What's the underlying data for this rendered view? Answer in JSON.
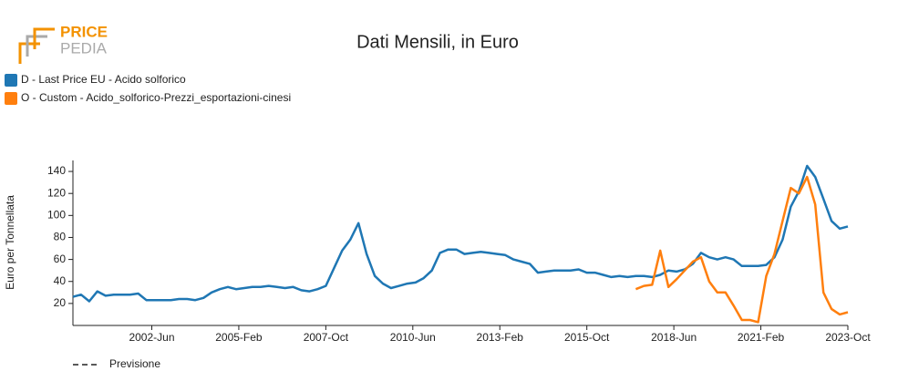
{
  "logo": [
    "PRICE",
    "PEDIA"
  ],
  "chart_data": {
    "type": "line",
    "title": "Dati Mensili, in Euro",
    "y_label": "Euro per Tonnellata",
    "forecast_label": "Previsione",
    "x": [
      "2000-01",
      "2000-04",
      "2000-07",
      "2000-10",
      "2001-01",
      "2001-04",
      "2001-07",
      "2001-10",
      "2002-01",
      "2002-04",
      "2002-07",
      "2002-10",
      "2003-01",
      "2003-04",
      "2003-07",
      "2003-10",
      "2004-01",
      "2004-04",
      "2004-07",
      "2004-10",
      "2005-01",
      "2005-04",
      "2005-07",
      "2005-10",
      "2006-01",
      "2006-04",
      "2006-07",
      "2006-10",
      "2007-01",
      "2007-04",
      "2007-07",
      "2007-10",
      "2008-01",
      "2008-04",
      "2008-07",
      "2008-10",
      "2009-01",
      "2009-04",
      "2009-07",
      "2009-10",
      "2010-01",
      "2010-04",
      "2010-07",
      "2010-10",
      "2011-01",
      "2011-04",
      "2011-07",
      "2011-10",
      "2012-01",
      "2012-04",
      "2012-07",
      "2012-10",
      "2013-01",
      "2013-04",
      "2013-07",
      "2013-10",
      "2014-01",
      "2014-04",
      "2014-07",
      "2014-10",
      "2015-01",
      "2015-04",
      "2015-07",
      "2015-10",
      "2016-01",
      "2016-04",
      "2016-07",
      "2016-10",
      "2017-01",
      "2017-04",
      "2017-07",
      "2017-10",
      "2018-01",
      "2018-04",
      "2018-07",
      "2018-10",
      "2019-01",
      "2019-04",
      "2019-07",
      "2019-10",
      "2020-01",
      "2020-04",
      "2020-07",
      "2020-10",
      "2021-01",
      "2021-04",
      "2021-07",
      "2021-10",
      "2022-01",
      "2022-04",
      "2022-07",
      "2022-10",
      "2023-01",
      "2023-04",
      "2023-07",
      "2023-10"
    ],
    "series": [
      {
        "name": "D - Last Price EU - Acido solforico",
        "color": "#1f77b4",
        "values": [
          26,
          28,
          22,
          31,
          27,
          28,
          28,
          28,
          29,
          23,
          23,
          23,
          23,
          24,
          24,
          23,
          25,
          30,
          33,
          35,
          33,
          34,
          35,
          35,
          36,
          35,
          34,
          35,
          32,
          31,
          33,
          36,
          52,
          68,
          78,
          93,
          65,
          45,
          38,
          34,
          36,
          38,
          39,
          43,
          50,
          66,
          69,
          69,
          65,
          66,
          67,
          66,
          65,
          64,
          60,
          58,
          56,
          48,
          49,
          50,
          50,
          50,
          51,
          48,
          48,
          46,
          44,
          45,
          44,
          45,
          45,
          44,
          46,
          50,
          49,
          51,
          56,
          66,
          62,
          60,
          62,
          60,
          54,
          54,
          54,
          55,
          62,
          78,
          108,
          122,
          145,
          135,
          115,
          95,
          88,
          90
        ]
      },
      {
        "name": "O - Custom - Acido_solforico-Prezzi_esportazioni-cinesi",
        "color": "#ff7f0e",
        "values": [
          null,
          null,
          null,
          null,
          null,
          null,
          null,
          null,
          null,
          null,
          null,
          null,
          null,
          null,
          null,
          null,
          null,
          null,
          null,
          null,
          null,
          null,
          null,
          null,
          null,
          null,
          null,
          null,
          null,
          null,
          null,
          null,
          null,
          null,
          null,
          null,
          null,
          null,
          null,
          null,
          null,
          null,
          null,
          null,
          null,
          null,
          null,
          null,
          null,
          null,
          null,
          null,
          null,
          null,
          null,
          null,
          null,
          null,
          null,
          null,
          null,
          null,
          null,
          null,
          null,
          null,
          null,
          null,
          null,
          33,
          36,
          37,
          68,
          35,
          42,
          50,
          58,
          62,
          40,
          30,
          30,
          18,
          5,
          5,
          3,
          45,
          65,
          95,
          125,
          120,
          135,
          110,
          30,
          15,
          10,
          12
        ]
      }
    ],
    "xlim": [
      "2000-01",
      "2023-10"
    ],
    "xticks": [
      {
        "value": "2002-06",
        "label": "2002-Jun"
      },
      {
        "value": "2005-02",
        "label": "2005-Feb"
      },
      {
        "value": "2007-10",
        "label": "2007-Oct"
      },
      {
        "value": "2010-06",
        "label": "2010-Jun"
      },
      {
        "value": "2013-02",
        "label": "2013-Feb"
      },
      {
        "value": "2015-10",
        "label": "2015-Oct"
      },
      {
        "value": "2018-06",
        "label": "2018-Jun"
      },
      {
        "value": "2021-02",
        "label": "2021-Feb"
      },
      {
        "value": "2023-10",
        "label": "2023-Oct"
      }
    ],
    "ylim": [
      0,
      150
    ],
    "yticks": [
      20,
      40,
      60,
      80,
      100,
      120,
      140
    ],
    "grid": false
  }
}
